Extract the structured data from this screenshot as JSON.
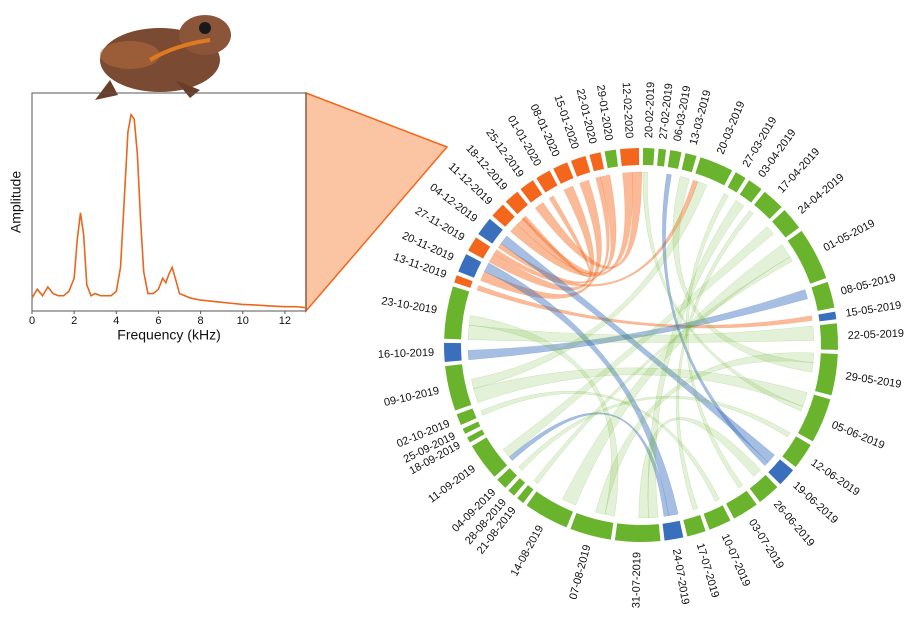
{
  "chart_data": [
    {
      "type": "line",
      "x_label": "Frequency (kHz)",
      "y_label": "Amplitude",
      "x": [
        0,
        0.25,
        0.5,
        0.75,
        1,
        1.25,
        1.5,
        1.75,
        2,
        2.15,
        2.3,
        2.45,
        2.6,
        2.8,
        3,
        3.25,
        3.5,
        3.75,
        4,
        4.2,
        4.4,
        4.55,
        4.7,
        4.85,
        5,
        5.15,
        5.3,
        5.5,
        5.75,
        6,
        6.2,
        6.35,
        6.5,
        6.65,
        6.8,
        7,
        7.25,
        7.5,
        8,
        8.5,
        9,
        9.5,
        10,
        10.5,
        11,
        11.5,
        12,
        12.5,
        13
      ],
      "series": [
        {
          "color": "#e8661e",
          "values": [
            0.06,
            0.1,
            0.07,
            0.11,
            0.08,
            0.07,
            0.07,
            0.09,
            0.15,
            0.33,
            0.45,
            0.35,
            0.12,
            0.07,
            0.08,
            0.07,
            0.07,
            0.07,
            0.09,
            0.2,
            0.55,
            0.82,
            0.9,
            0.88,
            0.72,
            0.42,
            0.18,
            0.08,
            0.08,
            0.1,
            0.15,
            0.13,
            0.17,
            0.2,
            0.15,
            0.08,
            0.07,
            0.06,
            0.05,
            0.045,
            0.04,
            0.035,
            0.03,
            0.028,
            0.025,
            0.022,
            0.02,
            0.02,
            0.015
          ]
        }
      ],
      "xlim": [
        0,
        13
      ],
      "ylim": [
        0,
        1
      ],
      "xticks": [
        0,
        2,
        4,
        6,
        8,
        10,
        12
      ]
    },
    {
      "type": "chord",
      "segments": [
        {
          "label": "20-02-2019",
          "color": "#6ab42d",
          "weight": 3
        },
        {
          "label": "27-02-2019",
          "color": "#6ab42d",
          "weight": 2
        },
        {
          "label": "06-03-2019",
          "color": "#6ab42d",
          "weight": 3
        },
        {
          "label": "13-03-2019",
          "color": "#6ab42d",
          "weight": 3
        },
        {
          "label": "20-03-2019",
          "color": "#6ab42d",
          "weight": 9
        },
        {
          "label": "27-03-2019",
          "color": "#6ab42d",
          "weight": 3
        },
        {
          "label": "03-04-2019",
          "color": "#6ab42d",
          "weight": 4
        },
        {
          "label": "17-04-2019",
          "color": "#6ab42d",
          "weight": 6
        },
        {
          "label": "24-04-2019",
          "color": "#6ab42d",
          "weight": 6
        },
        {
          "label": "01-05-2019",
          "color": "#6ab42d",
          "weight": 14
        },
        {
          "label": "08-05-2019",
          "color": "#6ab42d",
          "weight": 7
        },
        {
          "label": "15-05-2019",
          "color": "#3a6fbd",
          "weight": 2
        },
        {
          "label": "22-05-2019",
          "color": "#6ab42d",
          "weight": 7
        },
        {
          "label": "29-05-2019",
          "color": "#6ab42d",
          "weight": 11
        },
        {
          "label": "05-06-2019",
          "color": "#6ab42d",
          "weight": 12
        },
        {
          "label": "12-06-2019",
          "color": "#6ab42d",
          "weight": 7
        },
        {
          "label": "19-06-2019",
          "color": "#3a6fbd",
          "weight": 5
        },
        {
          "label": "26-06-2019",
          "color": "#6ab42d",
          "weight": 6
        },
        {
          "label": "03-07-2019",
          "color": "#6ab42d",
          "weight": 7
        },
        {
          "label": "10-07-2019",
          "color": "#6ab42d",
          "weight": 6
        },
        {
          "label": "17-07-2019",
          "color": "#6ab42d",
          "weight": 5
        },
        {
          "label": "24-07-2019",
          "color": "#3a6fbd",
          "weight": 5
        },
        {
          "label": "31-07-2019",
          "color": "#6ab42d",
          "weight": 12
        },
        {
          "label": "07-08-2019",
          "color": "#6ab42d",
          "weight": 11
        },
        {
          "label": "14-08-2019",
          "color": "#6ab42d",
          "weight": 12
        },
        {
          "label": "21-08-2019",
          "color": "#6ab42d",
          "weight": 2
        },
        {
          "label": "28-08-2019",
          "color": "#6ab42d",
          "weight": 2
        },
        {
          "label": "04-09-2019",
          "color": "#6ab42d",
          "weight": 3
        },
        {
          "label": "11-09-2019",
          "color": "#6ab42d",
          "weight": 10
        },
        {
          "label": "18-09-2019",
          "color": "#6ab42d",
          "weight": 1.5
        },
        {
          "label": "25-09-2019",
          "color": "#6ab42d",
          "weight": 1.5
        },
        {
          "label": "02-10-2019",
          "color": "#6ab42d",
          "weight": 3
        },
        {
          "label": "09-10-2019",
          "color": "#6ab42d",
          "weight": 12
        },
        {
          "label": "16-10-2019",
          "color": "#3a6fbd",
          "weight": 5
        },
        {
          "label": "23-10-2019",
          "color": "#6ab42d",
          "weight": 14
        },
        {
          "label": "13-11-2019",
          "color": "#f4661b",
          "weight": 2
        },
        {
          "label": "20-11-2019",
          "color": "#3a6fbd",
          "weight": 5
        },
        {
          "label": "27-11-2019",
          "color": "#f4661b",
          "weight": 4
        },
        {
          "label": "04-12-2019",
          "color": "#3a6fbd",
          "weight": 5
        },
        {
          "label": "11-12-2019",
          "color": "#f4661b",
          "weight": 4
        },
        {
          "label": "18-12-2019",
          "color": "#f4661b",
          "weight": 4
        },
        {
          "label": "25-12-2019",
          "color": "#f4661b",
          "weight": 4
        },
        {
          "label": "01-01-2020",
          "color": "#f4661b",
          "weight": 4
        },
        {
          "label": "08-01-2020",
          "color": "#f4661b",
          "weight": 4
        },
        {
          "label": "15-01-2020",
          "color": "#f4661b",
          "weight": 4
        },
        {
          "label": "22-01-2020",
          "color": "#f4661b",
          "weight": 3
        },
        {
          "label": "29-01-2020",
          "color": "#6ab42d",
          "weight": 3
        },
        {
          "label": "12-02-2020",
          "color": "#f4661b",
          "weight": 5
        }
      ],
      "links": [
        {
          "source": 47,
          "target": 39,
          "weight": 2
        },
        {
          "source": 47,
          "target": 41,
          "weight": 2
        },
        {
          "source": 45,
          "target": 38,
          "weight": 1
        },
        {
          "source": 44,
          "target": 36,
          "weight": 2
        },
        {
          "source": 43,
          "target": 37,
          "weight": 2
        },
        {
          "source": 42,
          "target": 40,
          "weight": 1
        },
        {
          "source": 35,
          "target": 11,
          "weight": 1
        },
        {
          "source": 37,
          "target": 4,
          "weight": 1
        },
        {
          "source": 39,
          "target": 45,
          "weight": 2
        },
        {
          "source": 33,
          "target": 10,
          "weight": 2
        },
        {
          "source": 36,
          "target": 21,
          "weight": 2
        },
        {
          "source": 38,
          "target": 16,
          "weight": 2
        },
        {
          "source": 16,
          "target": 2,
          "weight": 1
        },
        {
          "source": 21,
          "target": 28,
          "weight": 1
        },
        {
          "source": 34,
          "target": 12,
          "weight": 3
        },
        {
          "source": 34,
          "target": 23,
          "weight": 2
        },
        {
          "source": 32,
          "target": 14,
          "weight": 3
        },
        {
          "source": 32,
          "target": 4,
          "weight": 2
        },
        {
          "source": 28,
          "target": 8,
          "weight": 2
        },
        {
          "source": 22,
          "target": 6,
          "weight": 2
        },
        {
          "source": 23,
          "target": 13,
          "weight": 2
        },
        {
          "source": 24,
          "target": 9,
          "weight": 3
        },
        {
          "source": 22,
          "target": 17,
          "weight": 2
        },
        {
          "source": 13,
          "target": 3,
          "weight": 2
        },
        {
          "source": 14,
          "target": 0,
          "weight": 1
        },
        {
          "source": 31,
          "target": 19,
          "weight": 1
        },
        {
          "source": 27,
          "target": 15,
          "weight": 1
        },
        {
          "source": 7,
          "target": 20,
          "weight": 1
        },
        {
          "source": 9,
          "target": 25,
          "weight": 1
        },
        {
          "source": 18,
          "target": 5,
          "weight": 1
        }
      ]
    }
  ]
}
